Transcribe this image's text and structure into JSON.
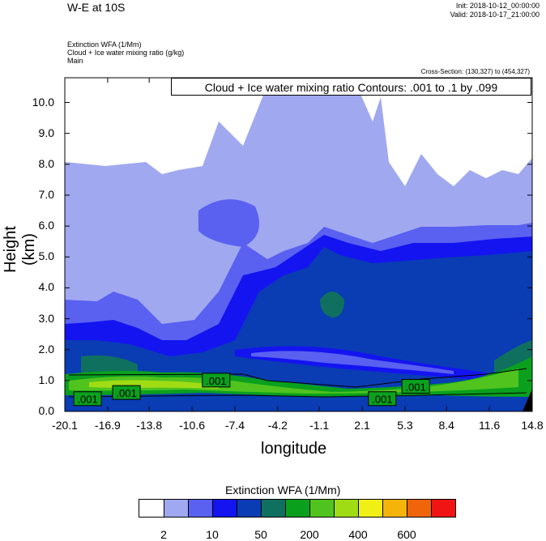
{
  "header": {
    "title": "W-E at 10S",
    "init": "Init: 2018-10-12_00:00:00",
    "valid": "Valid: 2018-10-17_21:00:00",
    "field1": "Extinction WFA   (1/Mm)",
    "field2": "Cloud + Ice water mixing ratio   (g/kg)",
    "field3": "Main",
    "cross_section": "Cross-Section: (130,327) to (454,327)",
    "contour_info": "Cloud + Ice water mixing ratio Contours: .001 to .1 by .099"
  },
  "chart_data": {
    "type": "heatmap",
    "xlabel": "longitude",
    "ylabel": "Height (km)",
    "x_ticks": [
      "-20.1",
      "-16.9",
      "-13.8",
      "-10.6",
      "-7.4",
      "-4.2",
      "-1.1",
      "2.1",
      "5.3",
      "8.4",
      "11.6",
      "14.8"
    ],
    "y_ticks": [
      "0.0",
      "1.0",
      "2.0",
      "3.0",
      "4.0",
      "5.0",
      "6.0",
      "7.0",
      "8.0",
      "9.0",
      "10.0"
    ],
    "xlim": [
      -20.1,
      14.8
    ],
    "ylim": [
      0,
      10.8
    ],
    "contour_labels": [
      ".001",
      ".001",
      ".001",
      ".001",
      ".001"
    ],
    "colorbar": {
      "title": "Extinction WFA  (1/Mm)",
      "labels": [
        "2",
        "10",
        "50",
        "200",
        "400",
        "600"
      ],
      "colors": [
        "#ffffff",
        "#a0a8f0",
        "#5a60f0",
        "#1414f0",
        "#0a3cb4",
        "#0f7060",
        "#0aa01e",
        "#50c31e",
        "#a0dc14",
        "#f0f014",
        "#f5b40a",
        "#f0640a",
        "#f01414"
      ]
    },
    "grid": false
  }
}
